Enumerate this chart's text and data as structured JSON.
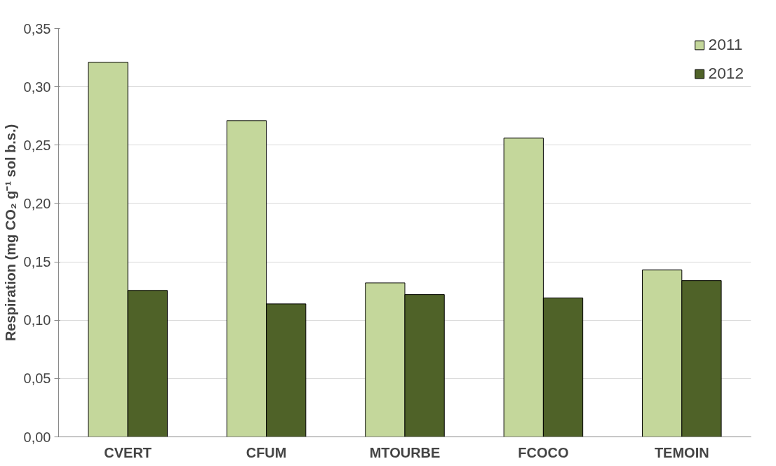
{
  "chart_data": {
    "type": "bar",
    "categories": [
      "CVERT",
      "CFUM",
      "MTOURBE",
      "FCOCO",
      "TEMOIN"
    ],
    "series": [
      {
        "name": "2011",
        "color": "#c4d79b",
        "values": [
          0.321,
          0.271,
          0.132,
          0.256,
          0.143
        ]
      },
      {
        "name": "2012",
        "color": "#4f6228",
        "values": [
          0.1255,
          0.114,
          0.122,
          0.119,
          0.134
        ]
      }
    ],
    "ylabel": "Respiration (mg CO₂ g⁻¹ sol b.s.)",
    "ylim": [
      0,
      0.35
    ],
    "yticks": [
      {
        "value": 0,
        "label": "0,00"
      },
      {
        "value": 0.05,
        "label": "0,05"
      },
      {
        "value": 0.1,
        "label": "0,10"
      },
      {
        "value": 0.15,
        "label": "0,15"
      },
      {
        "value": 0.2,
        "label": "0,20"
      },
      {
        "value": 0.25,
        "label": "0,25"
      },
      {
        "value": 0.3,
        "label": "0,30"
      },
      {
        "value": 0.35,
        "label": "0,35"
      }
    ],
    "grid": "y",
    "legend": "top right"
  }
}
